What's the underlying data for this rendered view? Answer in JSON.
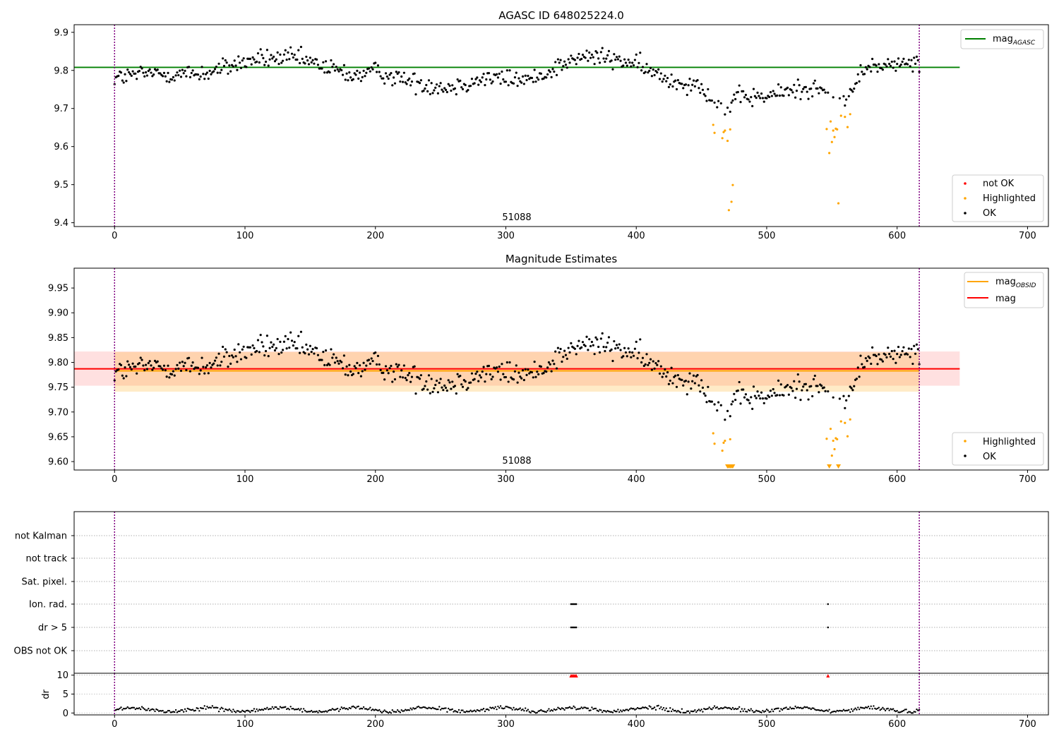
{
  "chart_data": [
    {
      "type": "scatter",
      "title": "AGASC ID 648025224.0",
      "xlim": [
        -31,
        716
      ],
      "ylim": [
        9.39,
        9.92
      ],
      "xticks": [
        "0",
        "100",
        "200",
        "300",
        "400",
        "500",
        "600",
        "700"
      ],
      "yticks": [
        "9.4",
        "9.5",
        "9.6",
        "9.7",
        "9.8",
        "9.9"
      ],
      "annotation": "51088",
      "obs_boundaries": [
        0,
        617
      ],
      "hlines": [
        {
          "name": "mag",
          "sub": "AGASC",
          "y": 9.808,
          "x_range": [
            -31,
            648
          ],
          "color": "#008000"
        }
      ],
      "line_legend": {
        "items": [
          {
            "main": "mag",
            "sub": "AGASC",
            "color": "#008000"
          }
        ],
        "position": "upper right"
      },
      "point_legend": {
        "items": [
          {
            "label": "not OK",
            "color": "#ff0000"
          },
          {
            "label": "Highlighted",
            "color": "#ffa500"
          },
          {
            "label": "OK",
            "color": "#000000"
          }
        ],
        "position": "lower right"
      },
      "highlighted_points": [
        [
          459,
          9.657
        ],
        [
          460,
          9.636
        ],
        [
          466,
          9.622
        ],
        [
          467,
          9.638
        ],
        [
          468,
          9.642
        ],
        [
          470,
          9.615
        ],
        [
          471,
          9.433
        ],
        [
          472,
          9.645
        ],
        [
          473,
          9.455
        ],
        [
          474,
          9.499
        ],
        [
          546,
          9.646
        ],
        [
          548,
          9.583
        ],
        [
          549,
          9.666
        ],
        [
          550,
          9.612
        ],
        [
          551,
          9.642
        ],
        [
          552,
          9.625
        ],
        [
          553,
          9.647
        ],
        [
          554,
          9.645
        ],
        [
          555,
          9.451
        ],
        [
          557,
          9.681
        ],
        [
          560,
          9.678
        ],
        [
          562,
          9.651
        ],
        [
          564,
          9.685
        ]
      ]
    },
    {
      "type": "scatter",
      "title": "Magnitude Estimates",
      "xlim": [
        -31,
        716
      ],
      "ylim": [
        9.583,
        9.99
      ],
      "xticks": [
        "0",
        "100",
        "200",
        "300",
        "400",
        "500",
        "600",
        "700"
      ],
      "yticks": [
        "9.60",
        "9.65",
        "9.70",
        "9.75",
        "9.80",
        "9.85",
        "9.90",
        "9.95"
      ],
      "annotation": "51088",
      "obs_boundaries": [
        0,
        617
      ],
      "hlines": [
        {
          "name": "mag",
          "sub": "OBSID",
          "y": 9.783,
          "x_range": [
            0,
            617
          ],
          "color": "#ffa500"
        },
        {
          "name": "mag",
          "sub": "",
          "y": 9.787,
          "x_range": [
            -31,
            648
          ],
          "color": "#ff0000"
        }
      ],
      "bands": [
        {
          "y_range": [
            9.753,
            9.822
          ],
          "x_range": [
            -31,
            648
          ],
          "color": "#ff0000",
          "opacity": 0.12
        },
        {
          "y_range": [
            9.741,
            9.821
          ],
          "x_range": [
            0,
            617
          ],
          "color": "#ffa500",
          "opacity": 0.22
        }
      ],
      "line_legend": {
        "items": [
          {
            "main": "mag",
            "sub": "OBSID",
            "color": "#ffa500"
          },
          {
            "main": "mag",
            "sub": "",
            "color": "#ff0000"
          }
        ],
        "position": "upper right"
      },
      "point_legend": {
        "items": [
          {
            "label": "Highlighted",
            "color": "#ffa500"
          },
          {
            "label": "OK",
            "color": "#000000"
          }
        ],
        "position": "lower right"
      },
      "highlighted_points": [
        [
          459,
          9.657
        ],
        [
          460,
          9.636
        ],
        [
          466,
          9.622
        ],
        [
          467,
          9.638
        ],
        [
          468,
          9.642
        ],
        [
          472,
          9.645
        ],
        [
          546,
          9.646
        ],
        [
          549,
          9.666
        ],
        [
          550,
          9.612
        ],
        [
          551,
          9.642
        ],
        [
          552,
          9.625
        ],
        [
          553,
          9.647
        ],
        [
          554,
          9.645
        ],
        [
          557,
          9.681
        ],
        [
          560,
          9.678
        ],
        [
          562,
          9.651
        ],
        [
          564,
          9.685
        ]
      ],
      "clipped_markers": [
        470,
        471,
        472,
        473,
        474,
        548,
        555
      ]
    },
    {
      "type": "scatter",
      "title": "",
      "xlim": [
        -31,
        716
      ],
      "categories": [
        "not Kalman",
        "not track",
        "Sat. pixel.",
        "Ion. rad.",
        "dr > 5",
        "OBS not OK"
      ],
      "obs_boundaries": [
        0,
        617
      ],
      "flag_points": [
        {
          "category": "Ion. rad.",
          "x": [
            350,
            351,
            352,
            353,
            354,
            547
          ]
        },
        {
          "category": "dr > 5",
          "x": [
            350,
            351,
            352,
            353,
            354,
            547
          ]
        }
      ]
    },
    {
      "type": "scatter",
      "title": "",
      "xlim": [
        -31,
        716
      ],
      "ylim": [
        -0.5,
        10.5
      ],
      "ylabel": "dr",
      "xticks": [
        "0",
        "100",
        "200",
        "300",
        "400",
        "500",
        "600",
        "700"
      ],
      "yticks": [
        "0",
        "5",
        "10"
      ],
      "obs_boundaries": [
        0,
        617
      ],
      "clipped_markers": [
        350,
        351,
        352,
        353,
        354,
        547
      ]
    }
  ]
}
